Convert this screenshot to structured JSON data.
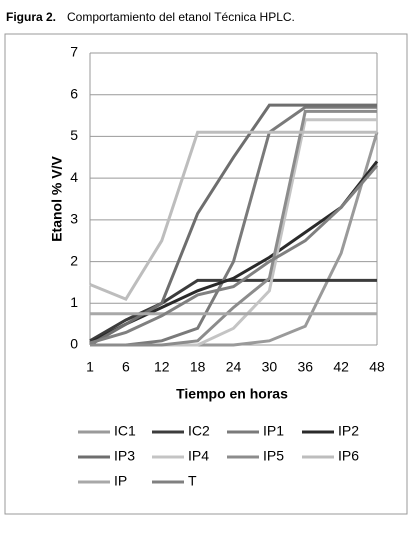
{
  "chart_data": {
    "type": "line",
    "title_label": "Figura 2.",
    "title": "Comportamiento del etanol Técnica HPLC.",
    "xlabel": "Tiempo en horas",
    "ylabel": "Etanol % V/V",
    "categories": [
      "1",
      "6",
      "12",
      "18",
      "24",
      "30",
      "36",
      "42",
      "48"
    ],
    "ylim": [
      0,
      7
    ],
    "yticks": [
      0,
      1,
      2,
      3,
      4,
      5,
      6,
      7
    ],
    "grid": true,
    "legend": "bottom",
    "series": [
      {
        "name": "IC1",
        "color": "#9a9a9a",
        "values": [
          0,
          0,
          0,
          0,
          0,
          0.1,
          0.45,
          2.2,
          5.1
        ]
      },
      {
        "name": "IC2",
        "color": "#3c3c3c",
        "values": [
          0.1,
          0.6,
          1.0,
          1.55,
          1.55,
          1.55,
          1.55,
          1.55,
          1.55
        ]
      },
      {
        "name": "IP1",
        "color": "#7a7a7a",
        "values": [
          0,
          0,
          0.1,
          0.4,
          2.0,
          5.1,
          5.7,
          5.7,
          5.7
        ]
      },
      {
        "name": "IP2",
        "color": "#2a2a2a",
        "values": [
          0.05,
          0.5,
          0.9,
          1.3,
          1.6,
          2.1,
          2.7,
          3.3,
          4.4
        ]
      },
      {
        "name": "IP3",
        "color": "#6e6e6e",
        "values": [
          0,
          0.5,
          1.0,
          3.15,
          4.5,
          5.75,
          5.75,
          5.75,
          5.75
        ]
      },
      {
        "name": "IP4",
        "color": "#c4c4c4",
        "values": [
          0,
          0,
          0,
          0,
          0.4,
          1.3,
          5.4,
          5.4,
          5.4
        ]
      },
      {
        "name": "IP5",
        "color": "#8c8c8c",
        "values": [
          0,
          0,
          0,
          0.1,
          0.9,
          1.6,
          5.6,
          5.6,
          5.6
        ]
      },
      {
        "name": "IP6",
        "color": "#bdbdbd",
        "values": [
          1.45,
          1.1,
          2.5,
          5.1,
          5.1,
          5.1,
          5.1,
          5.1,
          5.1
        ]
      },
      {
        "name": "IP",
        "color": "#a8a8a8",
        "values": [
          0.75,
          0.75,
          0.75,
          0.75,
          0.75,
          0.75,
          0.75,
          0.75,
          0.75
        ]
      },
      {
        "name": "T",
        "color": "#808080",
        "values": [
          0.05,
          0.3,
          0.7,
          1.2,
          1.4,
          2.0,
          2.5,
          3.3,
          4.3
        ]
      }
    ]
  }
}
